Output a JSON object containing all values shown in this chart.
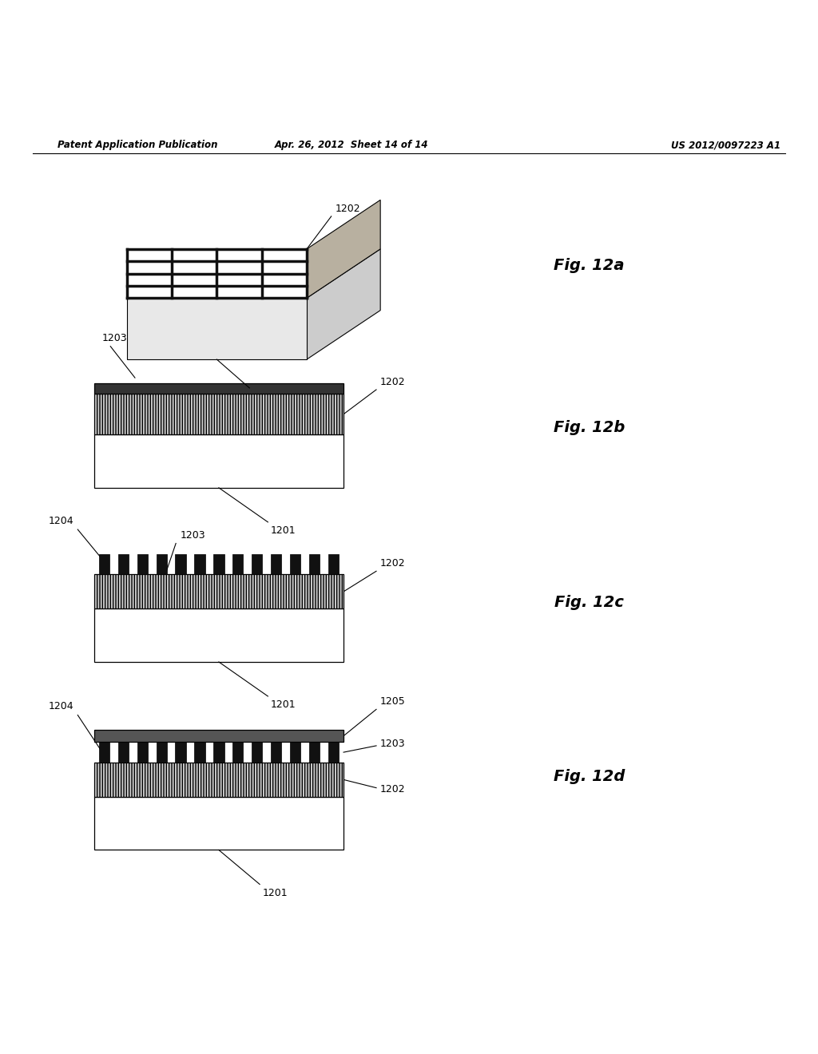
{
  "header_left": "Patent Application Publication",
  "header_mid": "Apr. 26, 2012  Sheet 14 of 14",
  "header_right": "US 2012/0097223 A1",
  "fig_labels": [
    "Fig. 12a",
    "Fig. 12b",
    "Fig. 12c",
    "Fig. 12d"
  ],
  "bg_color": "#ffffff",
  "text_color": "#000000"
}
